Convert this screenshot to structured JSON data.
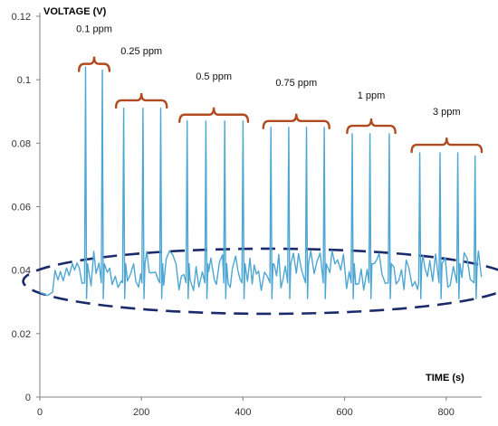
{
  "chart_data": {
    "type": "line",
    "ylabel": "VOLTAGE  (V)",
    "xlabel": "TIME (s)",
    "xlim": [
      0,
      870
    ],
    "ylim": [
      0,
      0.12
    ],
    "x_ticks": [
      0,
      200,
      400,
      600,
      800
    ],
    "y_ticks": [
      0,
      0.02,
      0.04,
      0.06,
      0.08,
      0.1,
      0.12
    ],
    "y_tick_labels": [
      "0",
      "0.02",
      "0.04",
      "0.06",
      "0.08",
      "0.1",
      "0.12"
    ],
    "grid": false,
    "baseline_v": 0.04,
    "series": [
      {
        "color": "#4ea6d3",
        "peaks": [
          {
            "x": 90,
            "y": 0.104
          },
          {
            "x": 123,
            "y": 0.103
          },
          {
            "x": 165,
            "y": 0.091
          },
          {
            "x": 203,
            "y": 0.091
          },
          {
            "x": 238,
            "y": 0.091
          },
          {
            "x": 290,
            "y": 0.087
          },
          {
            "x": 327,
            "y": 0.087
          },
          {
            "x": 364,
            "y": 0.087
          },
          {
            "x": 400,
            "y": 0.087
          },
          {
            "x": 455,
            "y": 0.085
          },
          {
            "x": 490,
            "y": 0.085
          },
          {
            "x": 525,
            "y": 0.085
          },
          {
            "x": 560,
            "y": 0.085
          },
          {
            "x": 615,
            "y": 0.083
          },
          {
            "x": 650,
            "y": 0.083
          },
          {
            "x": 688,
            "y": 0.083
          },
          {
            "x": 748,
            "y": 0.077
          },
          {
            "x": 788,
            "y": 0.077
          },
          {
            "x": 823,
            "y": 0.077
          },
          {
            "x": 857,
            "y": 0.076
          }
        ]
      }
    ],
    "annotations": [
      {
        "label": "0.1 ppm",
        "x_from": 77,
        "x_to": 137,
        "y_brace": 0.105,
        "y_label": 0.115
      },
      {
        "label": "0.25 ppm",
        "x_from": 150,
        "x_to": 250,
        "y_brace": 0.0935,
        "y_label": 0.108
      },
      {
        "label": "0.5 ppm",
        "x_from": 275,
        "x_to": 410,
        "y_brace": 0.089,
        "y_label": 0.1
      },
      {
        "label": "0.75 ppm",
        "x_from": 440,
        "x_to": 570,
        "y_brace": 0.087,
        "y_label": 0.098
      },
      {
        "label": "1 ppm",
        "x_from": 605,
        "x_to": 700,
        "y_brace": 0.0855,
        "y_label": 0.094
      },
      {
        "label": "3 ppm",
        "x_from": 732,
        "x_to": 870,
        "y_brace": 0.0795,
        "y_label": 0.089
      }
    ],
    "brace_color": "#b04a20",
    "ellipse_color": "#1a2a6a"
  }
}
